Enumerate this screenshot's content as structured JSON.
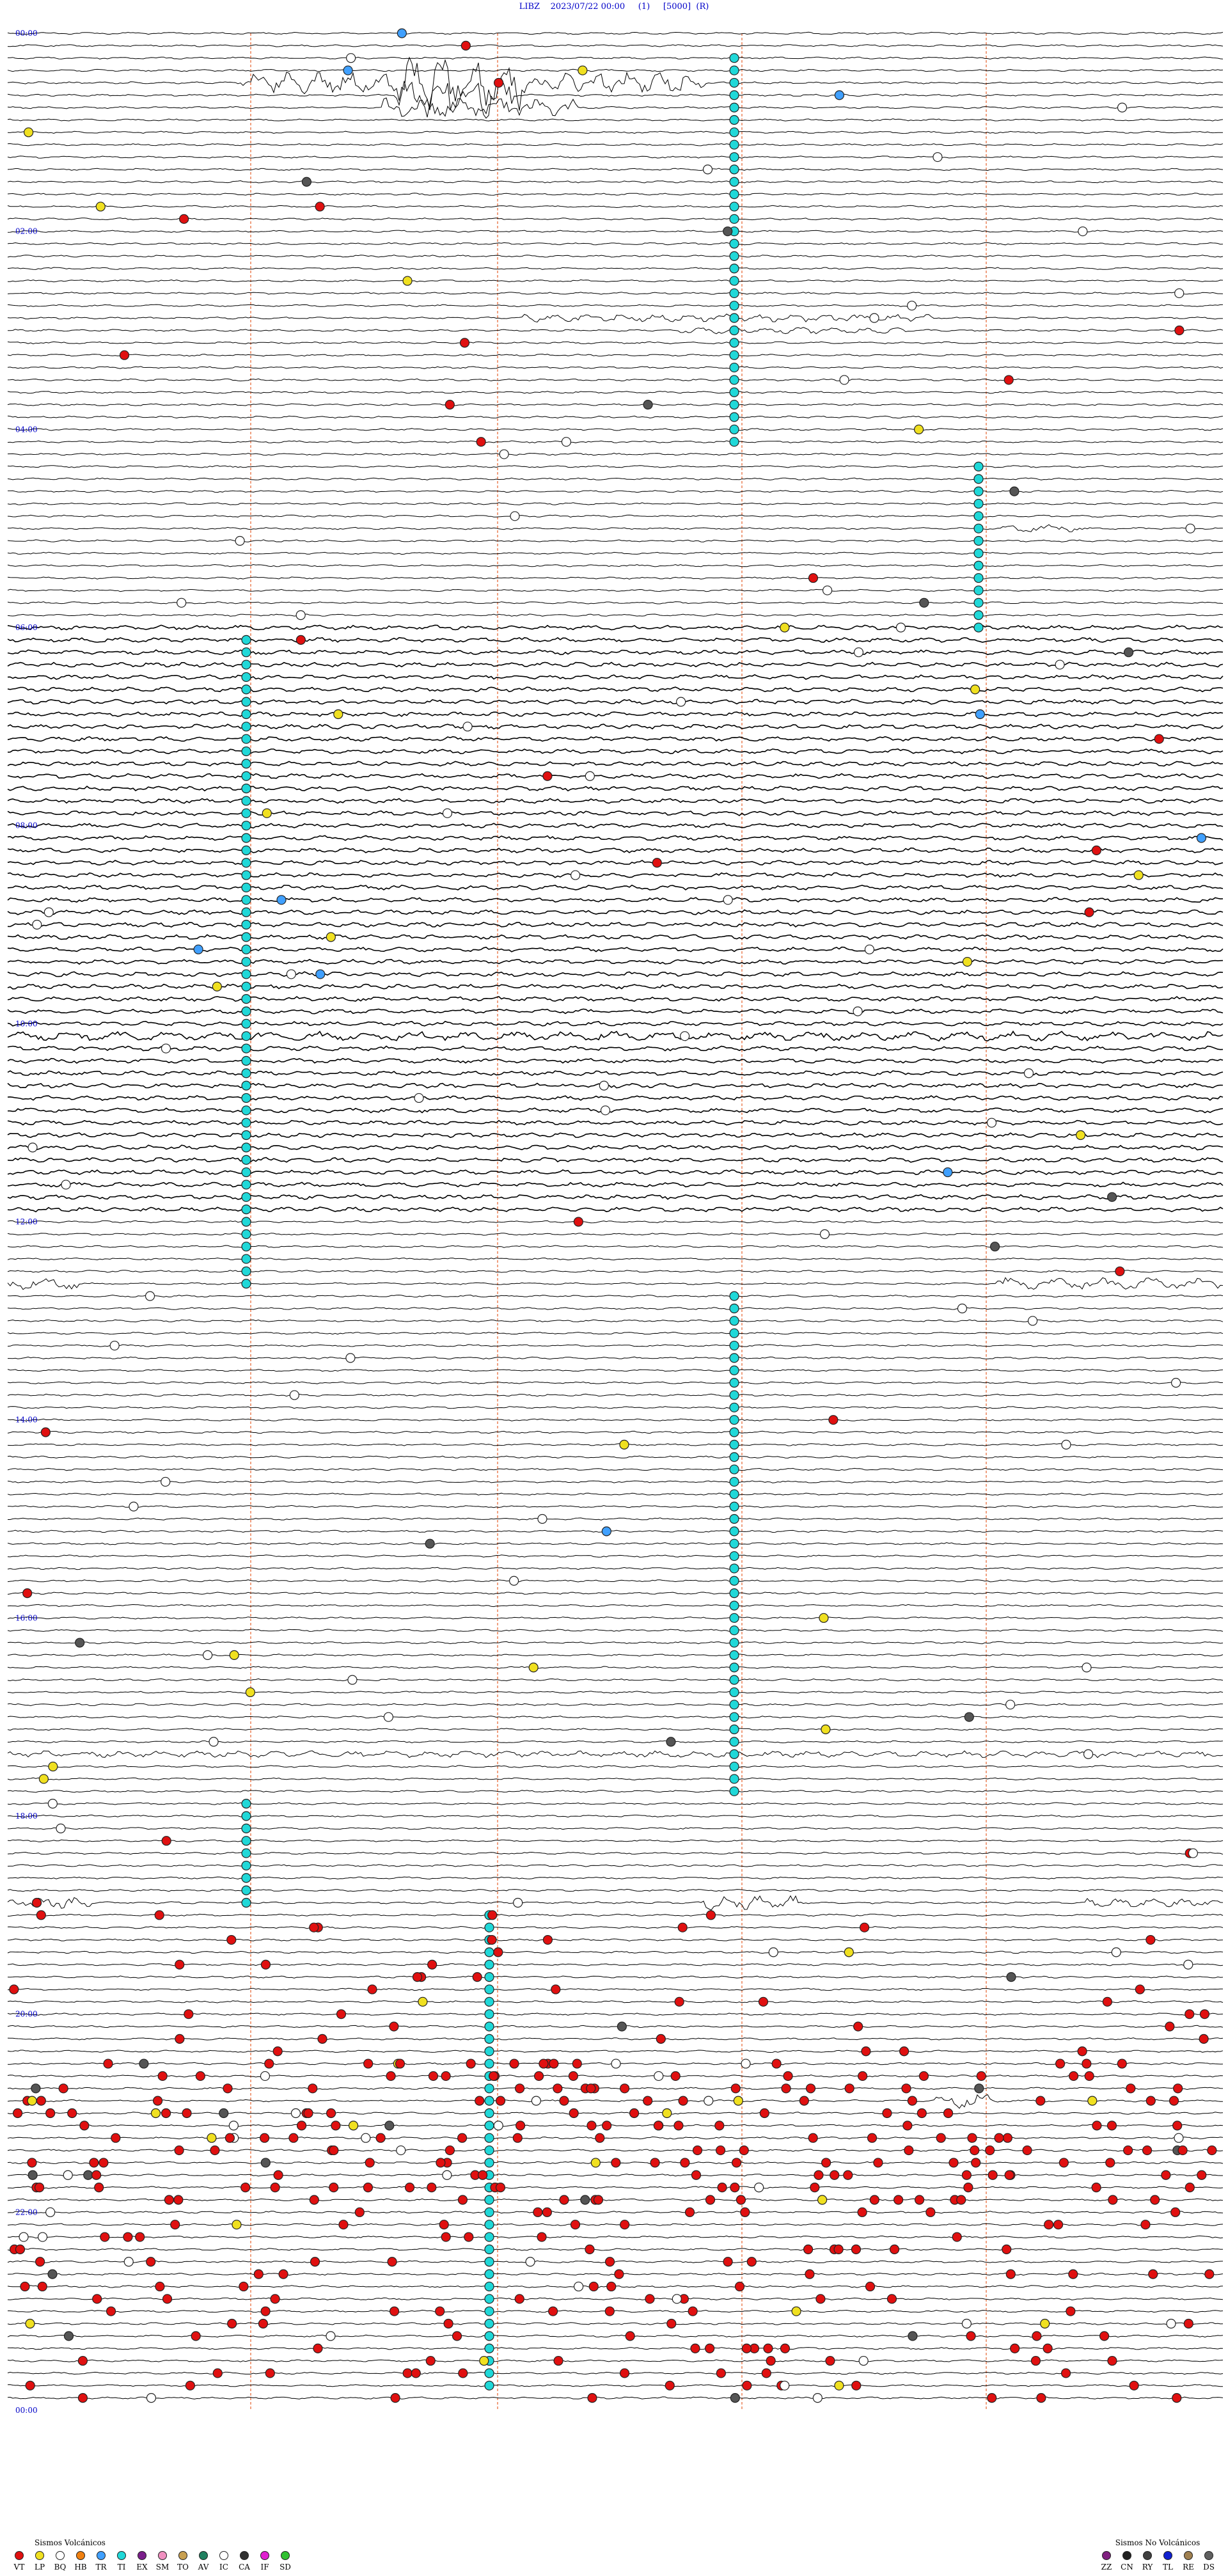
{
  "header": {
    "station": "LIBZ",
    "datetime": "2023/07/22 00:00",
    "gain": "(1)",
    "scale": "[5000]",
    "mode": "(R)"
  },
  "time_labels": [
    "00:00",
    "02:00",
    "04:00",
    "06:00",
    "08:00",
    "10:00",
    "12:00",
    "14:00",
    "16:00",
    "18:00",
    "20:00",
    "22:00",
    "00:00"
  ],
  "legend_volcanic": {
    "title": "Sismos Volcánicos",
    "items": [
      {
        "code": "VT",
        "color": "#e01010"
      },
      {
        "code": "LP",
        "color": "#f0e020"
      },
      {
        "code": "BQ",
        "color": "#ffffff"
      },
      {
        "code": "HB",
        "color": "#f08010"
      },
      {
        "code": "TR",
        "color": "#40a0ff"
      },
      {
        "code": "TI",
        "color": "#20d8d8"
      },
      {
        "code": "EX",
        "color": "#7a1e8a"
      },
      {
        "code": "SM",
        "color": "#f090c0"
      },
      {
        "code": "TO",
        "color": "#c8a050"
      },
      {
        "code": "AV",
        "color": "#208060"
      },
      {
        "code": "IC",
        "color": "#ffffff"
      },
      {
        "code": "CA",
        "color": "#303030"
      },
      {
        "code": "IF",
        "color": "#e020d0"
      },
      {
        "code": "SD",
        "color": "#30c030"
      }
    ]
  },
  "legend_nonvolcanic": {
    "title": "Sismos No Volcánicos",
    "items": [
      {
        "code": "ZZ",
        "color": "#802080"
      },
      {
        "code": "CN",
        "color": "#202020"
      },
      {
        "code": "RY",
        "color": "#404040"
      },
      {
        "code": "TL",
        "color": "#1020d0"
      },
      {
        "code": "RE",
        "color": "#a08050"
      },
      {
        "code": "DS",
        "color": "#606060"
      }
    ]
  },
  "colors": {
    "trace": "#000000",
    "time_label": "#0000c8",
    "marker_line": "#f0a080",
    "ti": "#20d8d8",
    "vt": "#e01010"
  }
}
